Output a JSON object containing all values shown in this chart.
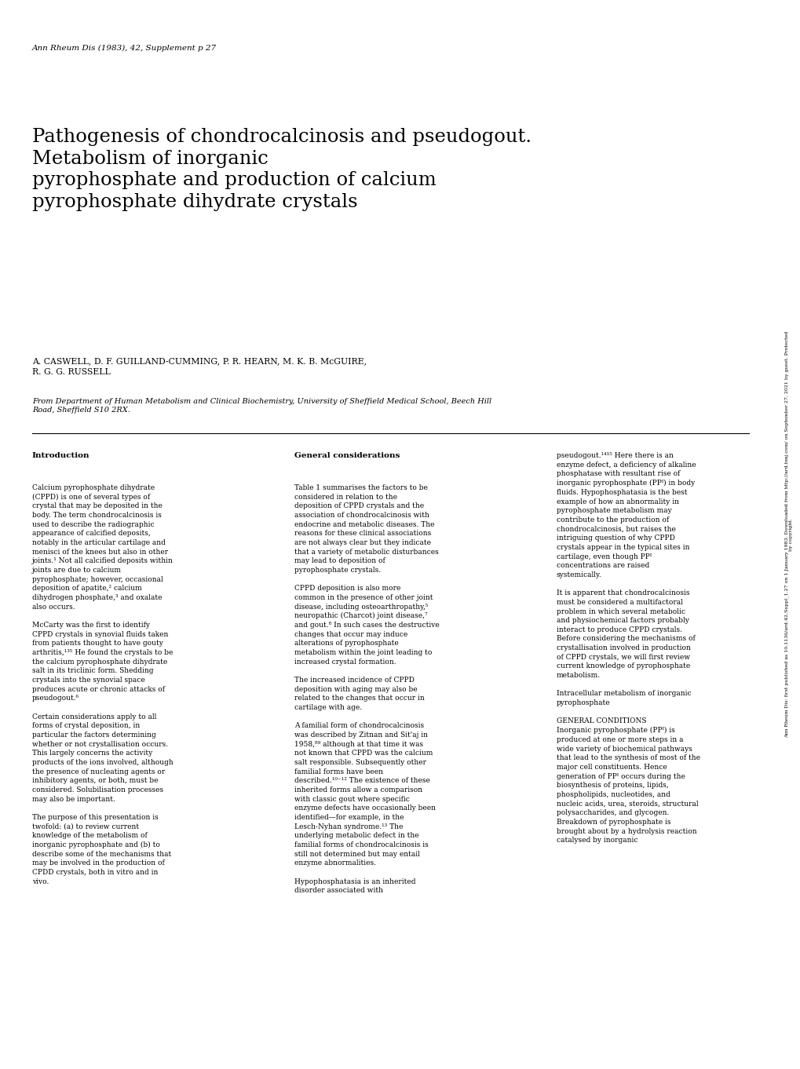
{
  "background_color": "#ffffff",
  "page_width": 10.2,
  "page_height": 13.62,
  "journal_ref": "Ann Rheum Dis (1983), 42, Supplement p 27",
  "title": "Pathogenesis of chondrocalcinosis and pseudogout.\nMetabolism of inorganic\npyrophosphate and production of calcium\npyrophosphate dihydrate crystals",
  "authors": "A. CASWELL, D. F. GUILLAND-CUMMING, P. R. HEARN, M. K. B. McGUIRE,\nR. G. G. RUSSELL",
  "affiliation": "From Department of Human Metabolism and Clinical Biochemistry, University of Sheffield Medical School, Beech Hill\nRoad, Sheffield S10 2RX.",
  "sidebar_text": "Ann Rheum Dis: first published as 10.1136/ard.42.Suppl_1.27 on 1 January 1983. Downloaded from http://ard.bmj.com/ on September 27, 2021 by guest. Protected\nby copyright.",
  "col1_heading": "Introduction",
  "col1_body": "Calcium pyrophosphate dihydrate\n(CPPD) is one of several types of\ncrystal that may be deposited in the\nbody. The term chondrocalcinosis is\nused to describe the radiographic\nappearance of calcified deposits,\nnotably in the articular cartilage and\nmenisci of the knees but also in other\njoints.¹ Not all calcified deposits within\njoints are due to calcium\npyrophosphate; however, occasional\ndeposition of apatite,² calcium\ndihydrogen phosphate,³ and oxalate\nalso occurs.\n\nMcCarty was the first to identify\nCPPD crystals in synovial fluids taken\nfrom patients thought to have gouty\narthritis,¹³⁵ He found the crystals to be\nthe calcium pyrophosphate dihydrate\nsalt in its triclinic form. Shedding\ncrystals into the synovial space\nproduces acute or chronic attacks of\npseudogout.⁶\n\nCertain considerations apply to all\nforms of crystal deposition, in\nparticular the factors determining\nwhether or not crystallisation occurs.\nThis largely concerns the activity\nproducts of the ions involved, although\nthe presence of nucleating agents or\ninhibitory agents, or both, must be\nconsidered. Solubilisation processes\nmay also be important.\n\nThe purpose of this presentation is\ntwofold: (a) to review current\nknowledge of the metabolism of\ninorganic pyrophosphate and (b) to\ndescribe some of the mechanisms that\nmay be involved in the production of\nCPDD crystals, both in vitro and in\nvivo.",
  "col2_heading": "General considerations",
  "col2_body": "Table 1 summarises the factors to be\nconsidered in relation to the\ndeposition of CPPD crystals and the\nassociation of chondrocalcinosis with\nendocrine and metabolic diseases. The\nreasons for these clinical associations\nare not always clear but they indicate\nthat a variety of metabolic disturbances\nmay lead to deposition of\npyrophosphate crystals.\n\nCPPD deposition is also more\ncommon in the presence of other joint\ndisease, including osteoarthropathy,⁵\nneuropathic (Charcot) joint disease,⁷\nand gout.⁸ In such cases the destructive\nchanges that occur may induce\nalterations of pyrophosphate\nmetabolism within the joint leading to\nincreased crystal formation.\n\nThe increased incidence of CPPD\ndeposition with aging may also be\nrelated to the changes that occur in\ncartilage with age.\n\nA familial form of chondrocalcinosis\nwas described by Zitnan and Sit'aj in\n1958,⁸⁹ although at that time it was\nnot known that CPPD was the calcium\nsalt responsible. Subsequently other\nfamilial forms have been\ndescribed.¹⁰⁻¹² The existence of these\ninherited forms allow a comparison\nwith classic gout where specific\nenzyme defects have occasionally been\nidentified—for example, in the\nLesch-Nyhan syndrome.¹³ The\nunderlying metabolic defect in the\nfamilial forms of chondrocalcinosis is\nstill not determined but may entail\nenzyme abnormalities.\n\nHypophosphatasia is an inherited\ndisorder associated with",
  "col3_body": "pseudogout.¹⁴¹⁵ Here there is an\nenzyme defect, a deficiency of alkaline\nphosphatase with resultant rise of\ninorganic pyrophosphate (PPᴵ) in body\nfluids. Hypophosphatasia is the best\nexample of how an abnormality in\npyrophosphate metabolism may\ncontribute to the production of\nchondrocalcinosis, but raises the\nintriguing question of why CPPD\ncrystals appear in the typical sites in\ncartilage, even though PPᴵ\nconcentrations are raised\nsystemically.\n\nIt is apparent that chondrocalcinosis\nmust be considered a multifactoral\nproblem in which several metabolic\nand physiochemical factors probably\ninteract to produce CPPD crystals.\nBefore considering the mechanisms of\ncrystallisation involved in production\nof CPPD crystals, we will first review\ncurrent knowledge of pyrophosphate\nmetabolism.\n\nIntracellular metabolism of inorganic\npyrophosphate\n\nGENERAL CONDITIONS\nInorganic pyrophosphate (PPᴵ) is\nproduced at one or more steps in a\nwide variety of biochemical pathways\nthat lead to the synthesis of most of the\nmajor cell constituents. Hence\ngeneration of PPᴵ occurs during the\nbiosynthesis of proteins, lipids,\nphospholipids, nucleotides, and\nnucleic acids, urea, steroids, structural\npolysaccharides, and glycogen.\nBreakdown of pyrophosphate is\nbrought about by a hydrolysis reaction\ncatalysed by inorganic"
}
